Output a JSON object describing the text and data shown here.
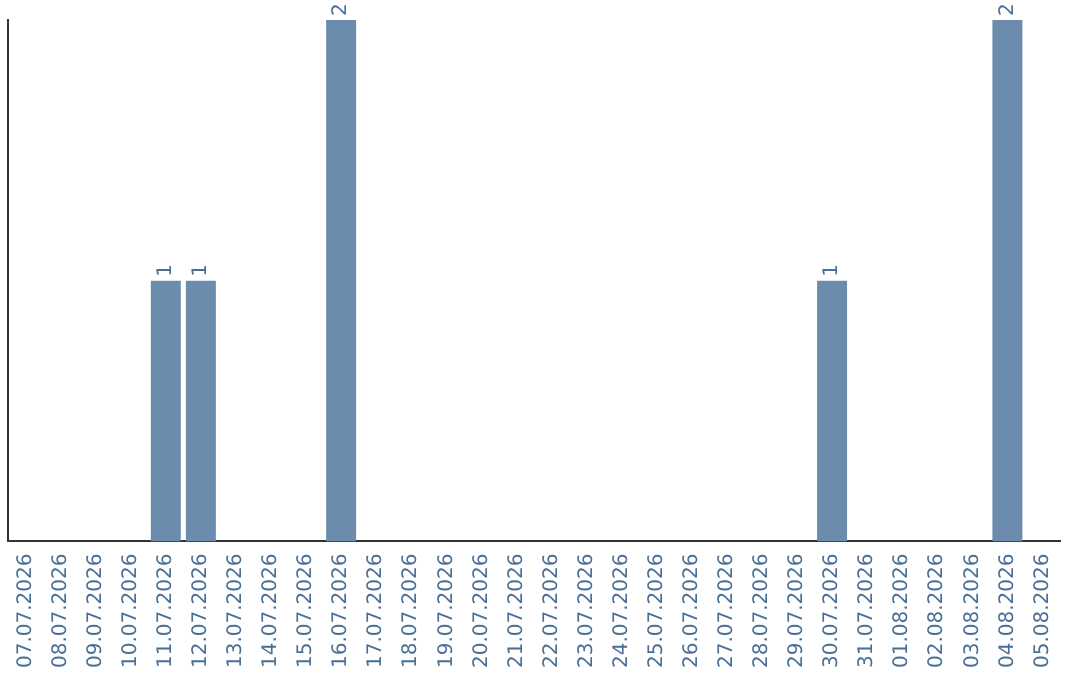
{
  "chart_data": {
    "type": "bar",
    "categories": [
      "07.07.2026",
      "08.07.2026",
      "09.07.2026",
      "10.07.2026",
      "11.07.2026",
      "12.07.2026",
      "13.07.2026",
      "14.07.2026",
      "15.07.2026",
      "16.07.2026",
      "17.07.2026",
      "18.07.2026",
      "19.07.2026",
      "20.07.2026",
      "21.07.2026",
      "22.07.2026",
      "23.07.2026",
      "24.07.2026",
      "25.07.2026",
      "26.07.2026",
      "27.07.2026",
      "28.07.2026",
      "29.07.2026",
      "30.07.2026",
      "31.07.2026",
      "01.08.2026",
      "02.08.2026",
      "03.08.2026",
      "04.08.2026",
      "05.08.2026"
    ],
    "values": [
      0,
      0,
      0,
      0,
      1,
      1,
      0,
      0,
      0,
      2,
      0,
      0,
      0,
      0,
      0,
      0,
      0,
      0,
      0,
      0,
      0,
      0,
      0,
      1,
      0,
      0,
      0,
      0,
      2,
      0
    ],
    "value_labels": [
      null,
      null,
      null,
      null,
      "1",
      "1",
      null,
      null,
      null,
      "2",
      null,
      null,
      null,
      null,
      null,
      null,
      null,
      null,
      null,
      null,
      null,
      null,
      null,
      "1",
      null,
      null,
      null,
      null,
      "2",
      null
    ],
    "color": "#6b8cac",
    "grid": false,
    "legend": false,
    "tick_labels": "x"
  }
}
